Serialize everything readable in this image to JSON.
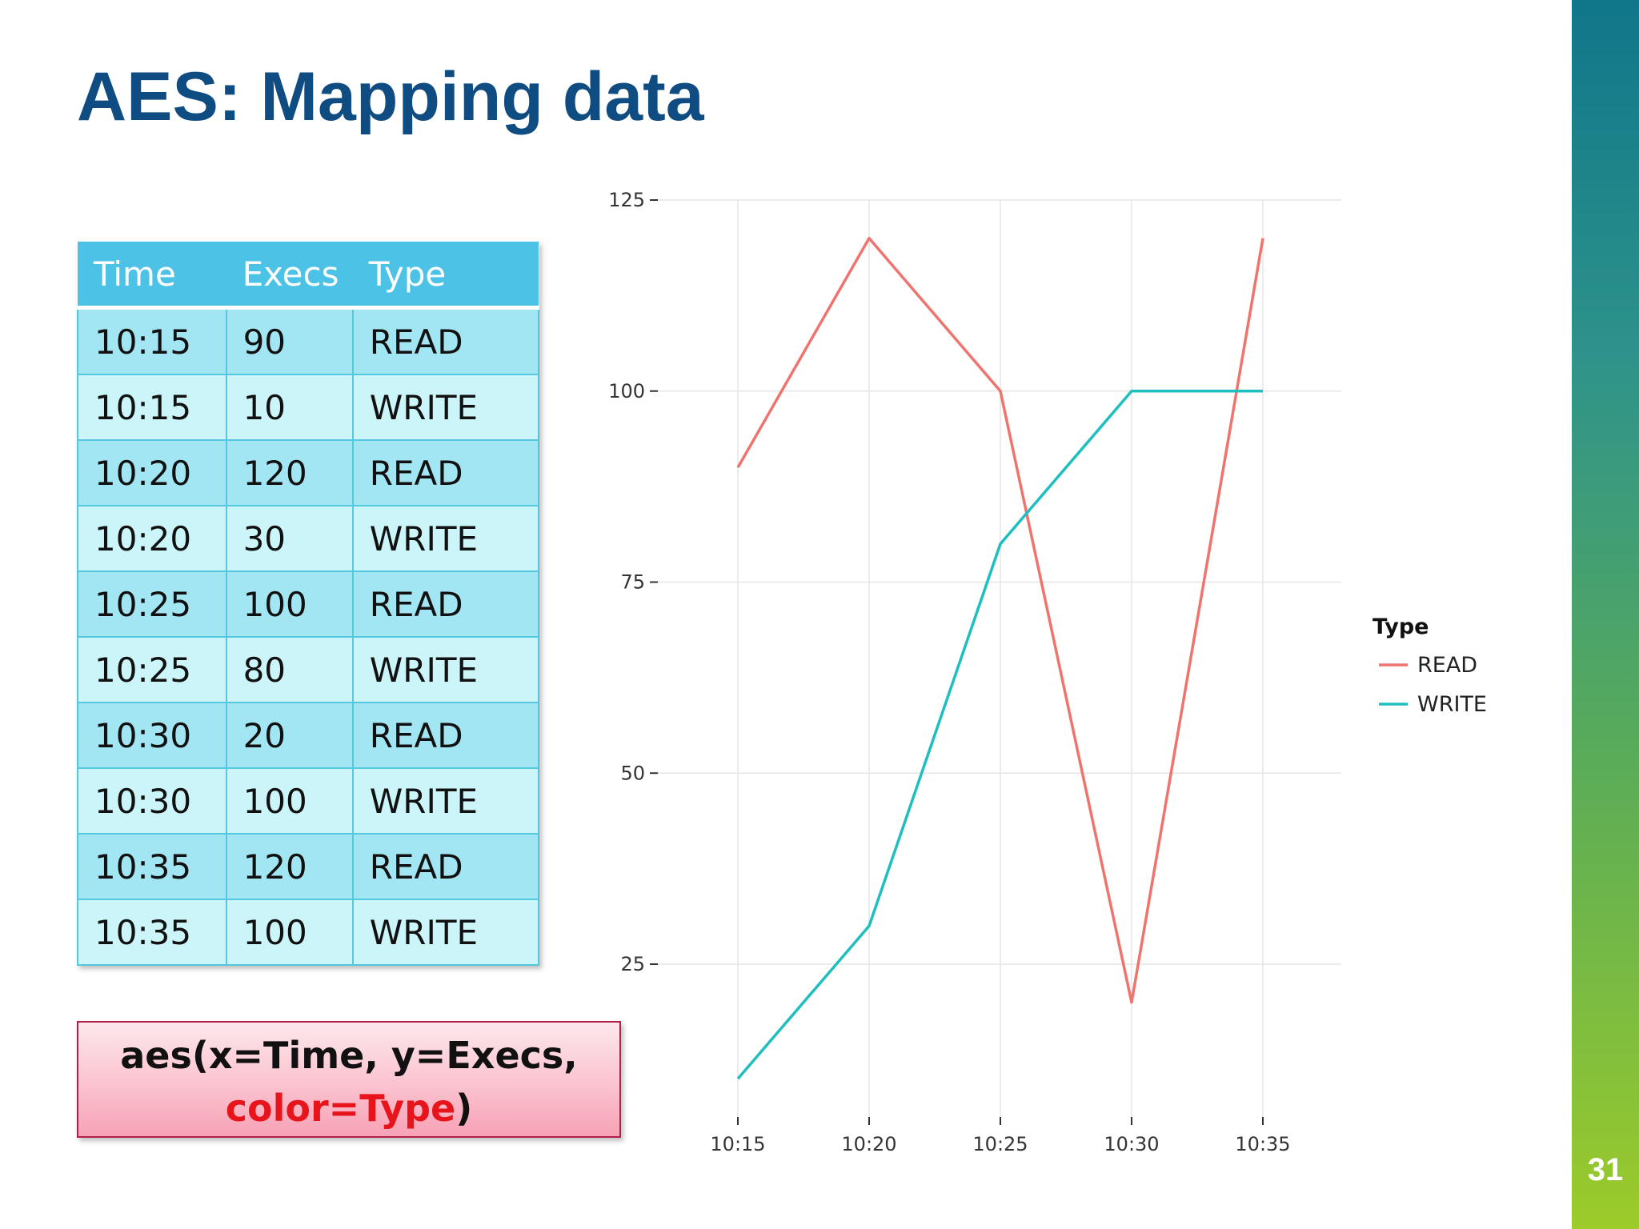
{
  "slide": {
    "title": "AES: Mapping data",
    "page_number": "31",
    "accent_color": "#0f4c81"
  },
  "table": {
    "headers": [
      "Time",
      "Execs",
      "Type"
    ],
    "rows": [
      [
        "10:15",
        "90",
        "READ"
      ],
      [
        "10:15",
        "10",
        "WRITE"
      ],
      [
        "10:20",
        "120",
        "READ"
      ],
      [
        "10:20",
        "30",
        "WRITE"
      ],
      [
        "10:25",
        "100",
        "READ"
      ],
      [
        "10:25",
        "80",
        "WRITE"
      ],
      [
        "10:30",
        "20",
        "READ"
      ],
      [
        "10:30",
        "100",
        "WRITE"
      ],
      [
        "10:35",
        "120",
        "READ"
      ],
      [
        "10:35",
        "100",
        "WRITE"
      ]
    ]
  },
  "code": {
    "line1": "aes(x=Time, y=Execs,",
    "highlight": "color=Type",
    "suffix": ")"
  },
  "chart_data": {
    "type": "line",
    "title": "",
    "xlabel": "",
    "ylabel": "",
    "categories": [
      "10:15",
      "10:20",
      "10:25",
      "10:30",
      "10:35"
    ],
    "ylim": [
      5,
      125
    ],
    "yticks": [
      25,
      50,
      75,
      100,
      125
    ],
    "grid": true,
    "legend": {
      "title": "Type",
      "position": "right"
    },
    "series": [
      {
        "name": "READ",
        "color": "#f0746e",
        "values": [
          90,
          120,
          100,
          20,
          120
        ]
      },
      {
        "name": "WRITE",
        "color": "#1fbfbf",
        "values": [
          10,
          30,
          80,
          100,
          100
        ]
      }
    ]
  }
}
